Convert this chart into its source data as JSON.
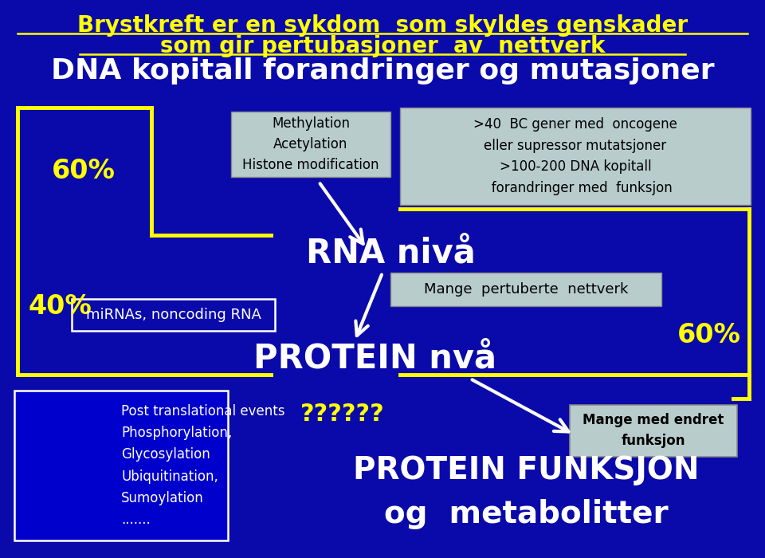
{
  "bg_color": "#0A0AAA",
  "title_line1": "Brystkreft er en sykdom  som skyldes genskader",
  "title_line2": "som gir pertubasjoner  av  nettverk",
  "title_color": "#FFFF00",
  "title_fontsize": 20,
  "subtitle": "DNA kopitall forandringer og mutasjoner",
  "subtitle_color": "#FFFFFF",
  "subtitle_fontsize": 26,
  "text_rna": "RNA nivå",
  "text_protein": "PROTEIN nvå",
  "text_protein_funksjon1": "PROTEIN FUNKSJON",
  "text_protein_funksjon2": "og  metabolitter",
  "text_60pct_left": "60%",
  "text_40pct": "40%",
  "text_60pct_right": "60%",
  "text_questions": "??????",
  "box_methylation": "Methylation\nAcetylation\nHistone modification",
  "box_bc_genes": ">40  BC gener med  oncogene\neller supressor mutatsjoner\n>100-200 DNA kopitall\n   forandringer med  funksjon",
  "box_mirna": "miRNAs, noncoding RNA",
  "box_mange_perturb": "Mange  pertuberte  nettverk",
  "box_mange_endret": "Mange med endret\nfunksjon",
  "box_post_trans": "Post translational events\nPhosphorylation,\nGlycosylation\nUbiquitination,\nSumoylation\n.......",
  "yellow": "#FFFF00",
  "white": "#FFFFFF",
  "box_bg": "#B8CCCC",
  "dark_blue": "#0000CC"
}
